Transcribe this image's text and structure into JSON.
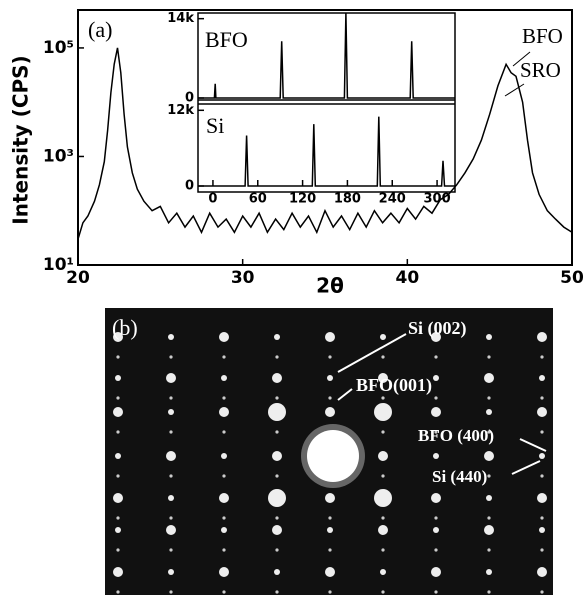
{
  "chart_data": [
    {
      "type": "line",
      "y_label": "Intensity (CPS)",
      "x_label": "2θ",
      "log_y": true,
      "color": "#000000",
      "annotations": [
        "(a)",
        "BFO",
        "SRO"
      ],
      "x": [
        20,
        20.3,
        20.6,
        21,
        21.3,
        21.6,
        21.8,
        22,
        22.2,
        22.4,
        22.6,
        22.8,
        23,
        23.3,
        23.6,
        24,
        24.5,
        25,
        25.5,
        26,
        26.5,
        27,
        27.5,
        28,
        28.5,
        29,
        29.5,
        30,
        30.5,
        31,
        31.5,
        32,
        32.5,
        33,
        33.5,
        34,
        34.5,
        35,
        35.5,
        36,
        36.5,
        37,
        37.5,
        38,
        38.5,
        39,
        39.5,
        40,
        40.5,
        41,
        41.5,
        42,
        42.5,
        43,
        43.5,
        44,
        44.5,
        45,
        45.5,
        46,
        46.3,
        46.6,
        47,
        47.3,
        47.6,
        48,
        48.5,
        49,
        49.5,
        50
      ],
      "values": [
        30,
        60,
        80,
        150,
        300,
        800,
        3000,
        15000,
        50000,
        100000,
        35000,
        6000,
        1500,
        500,
        250,
        150,
        100,
        120,
        60,
        90,
        50,
        80,
        40,
        90,
        50,
        70,
        40,
        80,
        50,
        90,
        40,
        70,
        45,
        90,
        50,
        80,
        40,
        100,
        50,
        80,
        45,
        90,
        50,
        100,
        60,
        90,
        60,
        110,
        70,
        120,
        90,
        160,
        200,
        300,
        500,
        900,
        2000,
        6000,
        20000,
        50000,
        35000,
        30000,
        10000,
        2000,
        500,
        200,
        100,
        70,
        50,
        40
      ],
      "xlim": [
        20,
        50
      ],
      "ylim": [
        10,
        500000
      ],
      "xticks": [
        20,
        30,
        40,
        50
      ],
      "yticks": [
        {
          "value": 10,
          "label": "10¹"
        },
        {
          "value": 1000,
          "label": "10³"
        },
        {
          "value": 100000,
          "label": "10⁵"
        }
      ]
    },
    {
      "type": "line",
      "label": "BFO",
      "color": "#000000",
      "x": [
        -20,
        2,
        3,
        4,
        90,
        92,
        94,
        176,
        178,
        180,
        264,
        266,
        268,
        324
      ],
      "values": [
        0,
        0,
        2500,
        0,
        0,
        10000,
        0,
        0,
        15000,
        0,
        0,
        10000,
        0,
        0
      ],
      "xlim": [
        -20,
        324
      ],
      "ylim": [
        0,
        15000
      ],
      "yticks": [
        0,
        {
          "value": 14000,
          "label": "14k"
        }
      ]
    },
    {
      "type": "line",
      "label": "Si",
      "color": "#000000",
      "x": [
        -20,
        43,
        45,
        47,
        133,
        135,
        137,
        220,
        222,
        224,
        306,
        308,
        310,
        324
      ],
      "values": [
        0,
        0,
        8000,
        0,
        0,
        9800,
        0,
        0,
        11000,
        0,
        0,
        4000,
        0,
        0
      ],
      "xlim": [
        -20,
        324
      ],
      "ylim": [
        0,
        13000
      ],
      "xticks": [
        0,
        60,
        120,
        180,
        240,
        300
      ],
      "yticks": [
        0,
        {
          "value": 12000,
          "label": "12k"
        }
      ]
    }
  ],
  "panel_b": {
    "label": "(b)",
    "annotations": [
      "Si (002)",
      "BFO(001)",
      "BFO (400)",
      "Si (440)"
    ]
  }
}
